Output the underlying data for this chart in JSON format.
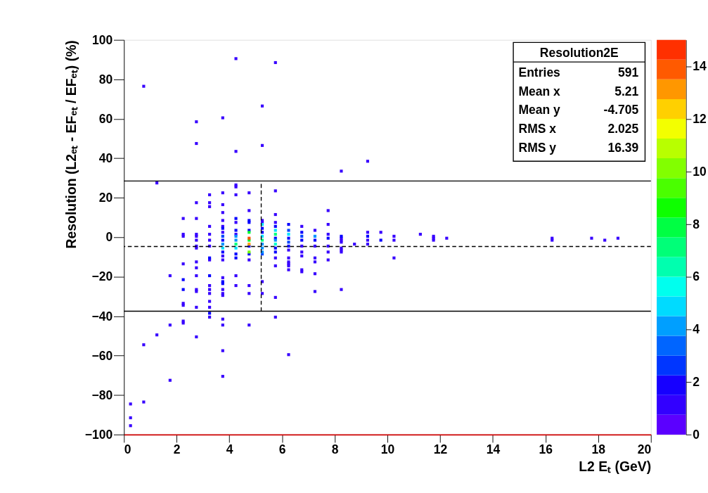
{
  "chart_data": {
    "type": "scatter",
    "xlabel": "L2 Eₜ (GeV)",
    "ylabel": "Resolution (L2ₑₜ - EFₑₜ / EFₑₜ) (%)",
    "xlim": [
      0,
      20
    ],
    "xticks": [
      0,
      2,
      4,
      6,
      8,
      10,
      12,
      14,
      16,
      18,
      20
    ],
    "ylim": [
      -100,
      100
    ],
    "yticks": [
      -100,
      -80,
      -60,
      -40,
      -20,
      0,
      20,
      40,
      60,
      80,
      100
    ],
    "clim": [
      0,
      15
    ],
    "cticks": [
      0,
      2,
      4,
      6,
      8,
      10,
      12,
      14
    ],
    "grid": false,
    "marker": "square",
    "annotations": [
      "Resolution2E",
      "Entries",
      "591",
      "Mean x",
      "5.21",
      "Mean y",
      "-4.705",
      "RMS x",
      "2.025",
      "RMS y",
      "16.39"
    ],
    "ref_lines": [
      {
        "axis": "y",
        "value": 28.5,
        "line_style": "solid"
      },
      {
        "axis": "y",
        "value": -37.5,
        "line_style": "solid"
      },
      {
        "axis": "y",
        "value": -4.705,
        "line_style": "dashed"
      },
      {
        "axis": "x",
        "value": 5.21,
        "line_style": "dashed"
      }
    ],
    "series": [
      {
        "color": "#3700ff",
        "x": [
          0.25,
          0.25,
          0.25,
          0.75,
          0.75,
          0.75,
          1.25,
          1.25,
          1.75,
          1.75,
          1.75,
          2.25,
          2.25,
          2.25,
          2.25,
          2.25,
          2.25,
          2.25,
          2.25,
          2.75,
          2.75,
          2.75,
          2.75,
          2.75,
          2.75,
          2.75,
          2.75,
          2.75,
          2.75,
          2.75,
          2.75,
          2.75,
          2.75,
          2.75,
          2.75,
          3.25,
          3.25,
          3.25,
          3.25,
          3.25,
          3.25,
          3.25,
          3.25,
          3.25,
          3.25,
          3.25,
          3.25,
          3.25,
          3.25,
          3.75,
          3.75,
          3.75,
          3.75,
          3.75,
          3.75,
          3.75,
          3.75,
          3.75,
          3.75,
          3.75,
          3.75,
          3.75,
          3.75,
          3.75,
          3.75,
          3.75,
          4.25,
          4.25,
          4.25,
          4.25,
          4.25,
          4.25,
          4.25,
          4.25,
          4.25,
          4.75,
          4.75,
          4.75,
          4.75,
          4.75,
          4.75,
          5.25,
          5.25,
          5.25,
          5.25,
          5.25,
          5.25,
          5.75,
          5.75,
          5.75,
          5.75,
          5.75,
          5.75,
          5.75,
          5.75,
          6.25,
          6.25,
          6.25,
          6.25,
          6.25,
          6.25,
          6.25,
          6.75,
          6.75,
          6.75,
          6.75,
          6.75,
          6.75,
          7.25,
          7.25,
          7.25,
          7.25,
          7.25,
          7.25,
          7.75,
          7.75,
          7.75,
          7.75,
          7.75,
          7.75,
          8.25,
          8.25,
          8.25,
          8.25,
          8.25,
          8.25,
          8.25,
          8.25,
          8.75,
          9.25,
          9.25,
          9.25,
          9.25,
          9.75,
          10.25,
          10.25,
          10.25,
          11.25,
          11.75,
          11.75,
          11.75,
          12.25,
          16.25,
          16.25,
          17.75,
          18.25,
          18.75
        ],
        "values": [
          -84.5,
          -91.5,
          -95.5,
          76.5,
          -54.5,
          -83.5,
          27.5,
          -49.5,
          -19.5,
          -44.5,
          -72.5,
          9.5,
          1.5,
          0.5,
          -13.5,
          -33.5,
          -34.5,
          -42.5,
          -43.5,
          58.5,
          47.5,
          17.5,
          9.5,
          1.5,
          0.5,
          -1.5,
          -4.5,
          -5.5,
          -12.5,
          -15.5,
          -19.5,
          -26.5,
          -27.5,
          -35.5,
          -50.5,
          21.5,
          17.5,
          15.5,
          5.5,
          1.5,
          -1.5,
          -4.5,
          -11.5,
          -24.5,
          -26.5,
          -28.5,
          -32.5,
          -35.5,
          -40.5,
          60.5,
          22.5,
          16.5,
          12.5,
          8.5,
          5.5,
          2.5,
          -9.5,
          -11.5,
          -20.5,
          -26.5,
          -28.5,
          -29.5,
          -41.5,
          -44.5,
          -57.5,
          -70.5,
          90.5,
          43.5,
          26.5,
          25.5,
          21.5,
          7.5,
          1.5,
          -19.5,
          -24.5,
          22.5,
          13.5,
          -11.5,
          -24.5,
          -28.5,
          -44.5,
          66.5,
          46.5,
          8.5,
          7.5,
          -22.5,
          -28.5,
          88.5,
          23.5,
          11.5,
          7.5,
          -10.5,
          -14.5,
          -30.5,
          -40.5,
          -6.5,
          -10.5,
          -12.5,
          -13.5,
          -14.5,
          -16.5,
          -59.5,
          5.5,
          -4.5,
          -7.5,
          -9.5,
          -16.5,
          -17.5,
          3.5,
          -4.5,
          -10.5,
          -12.5,
          -18.5,
          -27.5,
          13.5,
          6.5,
          1.5,
          -4.5,
          -7.5,
          -11.5,
          33.5,
          -0.5,
          -1.5,
          -2.5,
          -5.5,
          -6.5,
          -7.5,
          -26.5,
          -3.5,
          38.5,
          2.5,
          -1.5,
          -3.5,
          2.5,
          0.5,
          -1.5,
          -10.5,
          1.5,
          0.5,
          -0.5,
          -1.5,
          -0.5,
          -0.5,
          -1.5,
          -0.5,
          -1.5,
          -0.5
        ]
      },
      {
        "color": "#0700ff",
        "x": [
          2.25,
          2.25,
          3.25,
          3.25,
          3.25,
          3.75,
          3.75,
          3.75,
          3.75,
          3.75,
          4.25,
          4.25,
          4.25,
          4.25,
          4.75,
          4.75,
          4.75,
          4.75,
          4.75,
          5.25,
          5.25,
          5.75,
          5.75,
          5.75,
          5.75,
          6.25,
          6.25,
          6.25,
          6.75,
          6.75,
          7.25,
          7.75,
          8.25,
          9.25,
          9.75
        ],
        "values": [
          -21.5,
          -26.5,
          -10.5,
          -19.5,
          -38.5,
          4.5,
          -1.5,
          -7.5,
          -22.5,
          -23.5,
          9.5,
          3.5,
          -8.5,
          -10.5,
          8.5,
          7.5,
          3.5,
          -4.5,
          -8.5,
          4.5,
          2.5,
          5.5,
          -0.5,
          -5.5,
          -7.5,
          6.5,
          -0.5,
          -4.5,
          2.5,
          -1.5,
          -1.5,
          -0.5,
          0.5,
          0.5,
          -1.5
        ]
      },
      {
        "color": "#0044ff",
        "x": [
          3.75,
          5.25,
          6.25,
          6.25,
          6.75
        ],
        "values": [
          0.5,
          -8.5,
          3.5,
          -2.5,
          0.5
        ]
      },
      {
        "color": "#0093ff",
        "x": [
          3.75,
          4.25,
          4.25,
          5.25,
          5.25,
          5.25,
          5.75,
          7.25
        ],
        "values": [
          -3.5,
          0.5,
          -1.5,
          -3.5,
          -5.5,
          -7.5,
          -1.5,
          0.5
        ]
      },
      {
        "color": "#00e3ff",
        "x": [
          3.75,
          4.25,
          5.25,
          5.25,
          5.75,
          6.25
        ],
        "values": [
          -5.5,
          -5.5,
          6.5,
          0.5,
          3.5,
          1.5
        ]
      },
      {
        "color": "#00ffcc",
        "x": [
          5.75
        ],
        "values": [
          -3.5
        ]
      },
      {
        "color": "#00ff7d",
        "x": [
          4.25,
          5.25,
          5.75
        ],
        "values": [
          -3.5,
          -1.5,
          1.5
        ]
      },
      {
        "color": "#00ff2d",
        "x": [
          4.75,
          4.75
        ],
        "values": [
          2.5,
          -1.5
        ]
      },
      {
        "color": "#71ff00",
        "x": [
          4.75
        ],
        "values": [
          -7.5
        ]
      },
      {
        "color": "#ff9f00",
        "x": [
          4.75
        ],
        "values": [
          -3.5
        ]
      },
      {
        "color": "#ff4f00",
        "x": [
          4.75
        ],
        "values": [
          -0.5
        ]
      }
    ]
  }
}
